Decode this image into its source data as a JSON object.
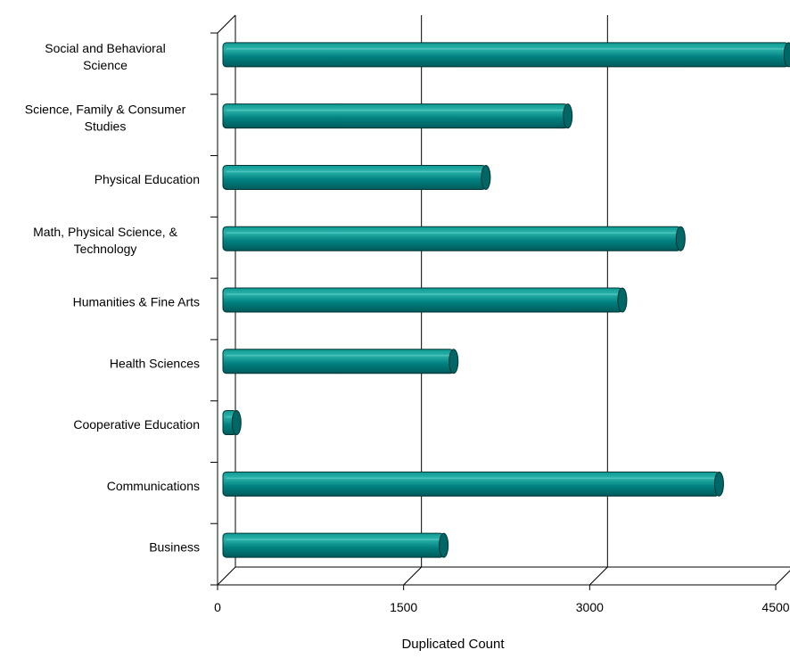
{
  "chart_data": {
    "type": "bar",
    "orientation": "horizontal",
    "categories": [
      "Business",
      "Communications",
      "Cooperative Education",
      "Health Sciences",
      "Humanities & Fine Arts",
      "Math, Physical Science, & Technology",
      "Physical Education",
      "Science, Family & Consumer Studies",
      "Social and Behavioral Science"
    ],
    "category_lines": [
      [
        "Business"
      ],
      [
        "Communications"
      ],
      [
        "Cooperative Education"
      ],
      [
        "Health Sciences"
      ],
      [
        "Humanities & Fine Arts"
      ],
      [
        "Math, Physical Science, &",
        "Technology"
      ],
      [
        "Physical Education"
      ],
      [
        "Science, Family & Consumer",
        "Studies"
      ],
      [
        "Social and Behavioral",
        "Science"
      ]
    ],
    "values": [
      1780,
      4000,
      110,
      1860,
      3220,
      3690,
      2120,
      2780,
      4560
    ],
    "xlabel": "Duplicated Count",
    "xlim": [
      0,
      4500
    ],
    "xticks": [
      "0",
      "1500",
      "3000",
      "4500"
    ],
    "grid": true,
    "bar_color": "#008080",
    "bar_edge_color": "#003333"
  }
}
